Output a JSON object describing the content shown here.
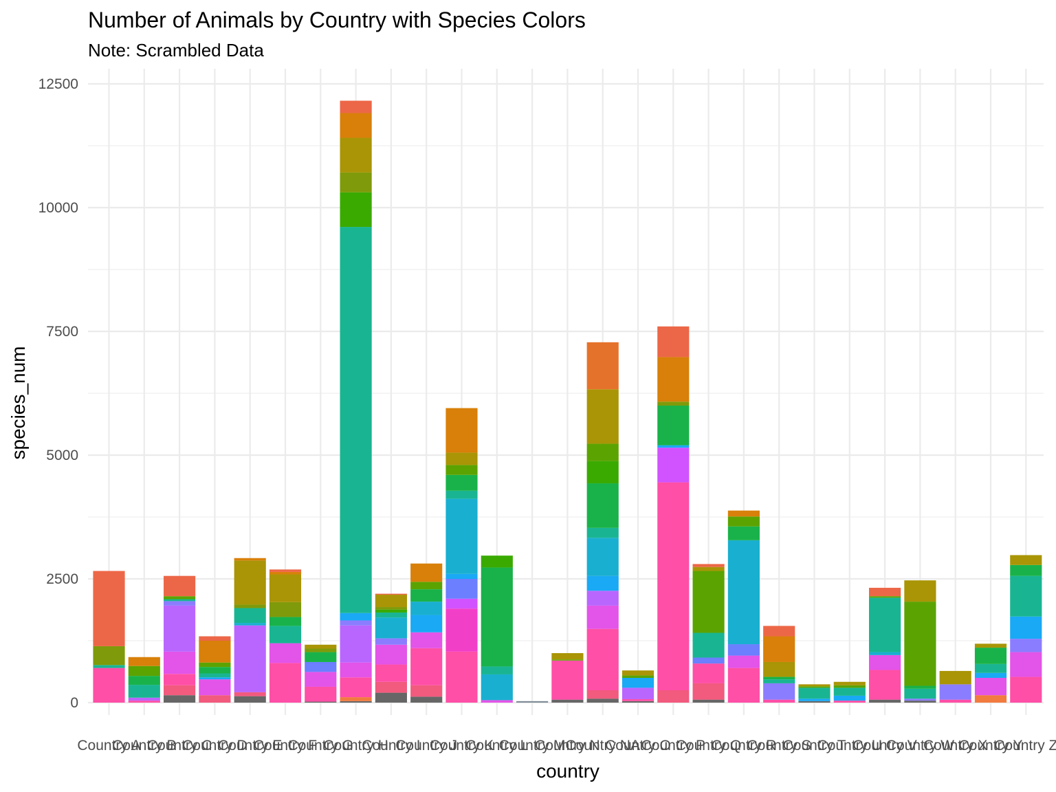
{
  "chart_data": {
    "type": "bar",
    "stacked": true,
    "title": "Number of Animals by Country with Species Colors",
    "subtitle": "Note: Scrambled Data",
    "xlabel": "country",
    "ylabel": "species_num",
    "ylim": [
      0,
      12700
    ],
    "yticks": [
      0,
      2500,
      5000,
      7500,
      10000,
      12500
    ],
    "ytick_labels": [
      "0",
      "2500",
      "5000",
      "7500",
      "10000",
      "12500"
    ],
    "grid": true,
    "legend": "none",
    "categories": [
      "Country A",
      "Country B",
      "Country C",
      "Country D",
      "Country E",
      "Country F",
      "Country G",
      "Country H",
      "Country I",
      "Country J",
      "Country K",
      "Country L",
      "Country M",
      "Country N",
      "Country NA",
      "Country O",
      "Country P",
      "Country Q",
      "Country R",
      "Country S",
      "Country T",
      "Country U",
      "Country V",
      "Country W",
      "Country X",
      "Country Y",
      "Country Z"
    ],
    "stacks": [
      [
        {
          "value": 700,
          "color": "#FF4FA6"
        },
        {
          "value": 60,
          "color": "#19B592"
        },
        {
          "value": 380,
          "color": "#7F9A0A"
        },
        {
          "value": 1520,
          "color": "#EC6747"
        }
      ],
      [
        {
          "value": 40,
          "color": "#FF4FA6"
        },
        {
          "value": 60,
          "color": "#B966FF"
        },
        {
          "value": 260,
          "color": "#19B592"
        },
        {
          "value": 180,
          "color": "#19B24A"
        },
        {
          "value": 200,
          "color": "#5BA300"
        },
        {
          "value": 180,
          "color": "#D8800A"
        }
      ],
      [
        {
          "value": 150,
          "color": "#666666"
        },
        {
          "value": 200,
          "color": "#F25A7E"
        },
        {
          "value": 230,
          "color": "#FF4FA6"
        },
        {
          "value": 450,
          "color": "#E354E8"
        },
        {
          "value": 930,
          "color": "#B966FF"
        },
        {
          "value": 90,
          "color": "#8B7DFF"
        },
        {
          "value": 40,
          "color": "#19B592"
        },
        {
          "value": 60,
          "color": "#5BA300"
        },
        {
          "value": 410,
          "color": "#EC6747"
        }
      ],
      [
        {
          "value": 150,
          "color": "#F25A7E"
        },
        {
          "value": 320,
          "color": "#E354E8"
        },
        {
          "value": 40,
          "color": "#19A9F5"
        },
        {
          "value": 80,
          "color": "#19B592"
        },
        {
          "value": 130,
          "color": "#19B24A"
        },
        {
          "value": 90,
          "color": "#5BA300"
        },
        {
          "value": 440,
          "color": "#D8800A"
        },
        {
          "value": 90,
          "color": "#EC6747"
        }
      ],
      [
        {
          "value": 130,
          "color": "#666666"
        },
        {
          "value": 80,
          "color": "#F25A7E"
        },
        {
          "value": 1350,
          "color": "#B966FF"
        },
        {
          "value": 50,
          "color": "#19AFD0"
        },
        {
          "value": 300,
          "color": "#19B592"
        },
        {
          "value": 70,
          "color": "#7F9A0A"
        },
        {
          "value": 890,
          "color": "#A99506"
        },
        {
          "value": 50,
          "color": "#D8800A"
        }
      ],
      [
        {
          "value": 800,
          "color": "#FF4FA6"
        },
        {
          "value": 400,
          "color": "#E354E8"
        },
        {
          "value": 350,
          "color": "#19B592"
        },
        {
          "value": 180,
          "color": "#19B24A"
        },
        {
          "value": 300,
          "color": "#7F9A0A"
        },
        {
          "value": 560,
          "color": "#A99506"
        },
        {
          "value": 50,
          "color": "#D8800A"
        },
        {
          "value": 50,
          "color": "#EC6747"
        }
      ],
      [
        {
          "value": 20,
          "color": "#666666"
        },
        {
          "value": 300,
          "color": "#FF4FA6"
        },
        {
          "value": 300,
          "color": "#E354E8"
        },
        {
          "value": 200,
          "color": "#6B7FFF"
        },
        {
          "value": 200,
          "color": "#19B24A"
        },
        {
          "value": 70,
          "color": "#7F9A0A"
        },
        {
          "value": 80,
          "color": "#A99506"
        }
      ],
      [
        {
          "value": 30,
          "color": "#666666"
        },
        {
          "value": 80,
          "color": "#F27B3F"
        },
        {
          "value": 400,
          "color": "#FF4FA6"
        },
        {
          "value": 300,
          "color": "#E354E8"
        },
        {
          "value": 750,
          "color": "#B966FF"
        },
        {
          "value": 100,
          "color": "#8B7DFF"
        },
        {
          "value": 150,
          "color": "#19A9F5"
        },
        {
          "value": 7800,
          "color": "#19B592"
        },
        {
          "value": 700,
          "color": "#3AAA00"
        },
        {
          "value": 400,
          "color": "#7F9A0A"
        },
        {
          "value": 700,
          "color": "#A99506"
        },
        {
          "value": 500,
          "color": "#D8800A"
        },
        {
          "value": 250,
          "color": "#EC6747"
        }
      ],
      [
        {
          "value": 200,
          "color": "#666666"
        },
        {
          "value": 220,
          "color": "#F25A7E"
        },
        {
          "value": 350,
          "color": "#FF4FA6"
        },
        {
          "value": 400,
          "color": "#E354E8"
        },
        {
          "value": 130,
          "color": "#8B7DFF"
        },
        {
          "value": 420,
          "color": "#19AFD0"
        },
        {
          "value": 100,
          "color": "#19B592"
        },
        {
          "value": 60,
          "color": "#3AAA00"
        },
        {
          "value": 50,
          "color": "#7F9A0A"
        },
        {
          "value": 250,
          "color": "#A99506"
        },
        {
          "value": 20,
          "color": "#EC6747"
        }
      ],
      [
        {
          "value": 120,
          "color": "#666666"
        },
        {
          "value": 230,
          "color": "#F25A7E"
        },
        {
          "value": 750,
          "color": "#FF4FA6"
        },
        {
          "value": 320,
          "color": "#E354E8"
        },
        {
          "value": 350,
          "color": "#19A9F5"
        },
        {
          "value": 270,
          "color": "#19AFD0"
        },
        {
          "value": 250,
          "color": "#19B24A"
        },
        {
          "value": 150,
          "color": "#5BA300"
        },
        {
          "value": 370,
          "color": "#D8800A"
        }
      ],
      [
        {
          "value": 1030,
          "color": "#FF4FA6"
        },
        {
          "value": 870,
          "color": "#F23FC8"
        },
        {
          "value": 200,
          "color": "#D053FF"
        },
        {
          "value": 400,
          "color": "#6B7FFF"
        },
        {
          "value": 100,
          "color": "#19A9F5"
        },
        {
          "value": 1520,
          "color": "#19AFD0"
        },
        {
          "value": 160,
          "color": "#19B592"
        },
        {
          "value": 320,
          "color": "#19B24A"
        },
        {
          "value": 200,
          "color": "#5BA300"
        },
        {
          "value": 250,
          "color": "#A99506"
        },
        {
          "value": 900,
          "color": "#D8800A"
        }
      ],
      [
        {
          "value": 50,
          "color": "#E354E8"
        },
        {
          "value": 520,
          "color": "#19AFD0"
        },
        {
          "value": 160,
          "color": "#19B592"
        },
        {
          "value": 2000,
          "color": "#19B24A"
        },
        {
          "value": 240,
          "color": "#3AAA00"
        }
      ],
      [
        {
          "value": 30,
          "color": "#7F8C99"
        }
      ],
      [
        {
          "value": 60,
          "color": "#666666"
        },
        {
          "value": 790,
          "color": "#FF4FA6"
        },
        {
          "value": 20,
          "color": "#5BA300"
        },
        {
          "value": 130,
          "color": "#A99506"
        }
      ],
      [
        {
          "value": 80,
          "color": "#666666"
        },
        {
          "value": 170,
          "color": "#F25A7E"
        },
        {
          "value": 1240,
          "color": "#FF4FA6"
        },
        {
          "value": 470,
          "color": "#E354E8"
        },
        {
          "value": 300,
          "color": "#B966FF"
        },
        {
          "value": 300,
          "color": "#19A9F5"
        },
        {
          "value": 770,
          "color": "#19AFD0"
        },
        {
          "value": 200,
          "color": "#19B592"
        },
        {
          "value": 900,
          "color": "#19B24A"
        },
        {
          "value": 450,
          "color": "#3AAA00"
        },
        {
          "value": 350,
          "color": "#5BA300"
        },
        {
          "value": 1100,
          "color": "#A99506"
        },
        {
          "value": 950,
          "color": "#E5722A"
        }
      ],
      [
        {
          "value": 30,
          "color": "#666666"
        },
        {
          "value": 40,
          "color": "#FF4FA6"
        },
        {
          "value": 230,
          "color": "#B966FF"
        },
        {
          "value": 200,
          "color": "#19A9F5"
        },
        {
          "value": 50,
          "color": "#5BA300"
        },
        {
          "value": 100,
          "color": "#A99506"
        }
      ],
      [
        {
          "value": 250,
          "color": "#F25A7E"
        },
        {
          "value": 4200,
          "color": "#FF4FA6"
        },
        {
          "value": 700,
          "color": "#D053FF"
        },
        {
          "value": 50,
          "color": "#19A9F5"
        },
        {
          "value": 800,
          "color": "#19B24A"
        },
        {
          "value": 80,
          "color": "#7F9A0A"
        },
        {
          "value": 900,
          "color": "#D8800A"
        },
        {
          "value": 620,
          "color": "#EC6747"
        }
      ],
      [
        {
          "value": 60,
          "color": "#666666"
        },
        {
          "value": 330,
          "color": "#F25A7E"
        },
        {
          "value": 400,
          "color": "#FF4FA6"
        },
        {
          "value": 120,
          "color": "#6B7FFF"
        },
        {
          "value": 500,
          "color": "#19B592"
        },
        {
          "value": 1250,
          "color": "#5BA300"
        },
        {
          "value": 80,
          "color": "#A99506"
        },
        {
          "value": 60,
          "color": "#EC6747"
        }
      ],
      [
        {
          "value": 700,
          "color": "#FF4FA6"
        },
        {
          "value": 250,
          "color": "#E354E8"
        },
        {
          "value": 230,
          "color": "#6B7FFF"
        },
        {
          "value": 2100,
          "color": "#19AFD0"
        },
        {
          "value": 280,
          "color": "#19B24A"
        },
        {
          "value": 200,
          "color": "#5BA300"
        },
        {
          "value": 120,
          "color": "#D8800A"
        }
      ],
      [
        {
          "value": 60,
          "color": "#FF4FA6"
        },
        {
          "value": 330,
          "color": "#8B7DFF"
        },
        {
          "value": 80,
          "color": "#19B592"
        },
        {
          "value": 50,
          "color": "#19B24A"
        },
        {
          "value": 300,
          "color": "#A99506"
        },
        {
          "value": 520,
          "color": "#D8800A"
        },
        {
          "value": 210,
          "color": "#EC6747"
        }
      ],
      [
        {
          "value": 30,
          "color": "#666666"
        },
        {
          "value": 50,
          "color": "#19A9F5"
        },
        {
          "value": 220,
          "color": "#19B592"
        },
        {
          "value": 30,
          "color": "#5BA300"
        },
        {
          "value": 40,
          "color": "#A99506"
        }
      ],
      [
        {
          "value": 40,
          "color": "#FF4FA6"
        },
        {
          "value": 100,
          "color": "#19A9F5"
        },
        {
          "value": 160,
          "color": "#19B592"
        },
        {
          "value": 50,
          "color": "#5BA300"
        },
        {
          "value": 70,
          "color": "#A99506"
        }
      ],
      [
        {
          "value": 60,
          "color": "#666666"
        },
        {
          "value": 600,
          "color": "#FF4FA6"
        },
        {
          "value": 300,
          "color": "#E354E8"
        },
        {
          "value": 60,
          "color": "#19AFD0"
        },
        {
          "value": 1100,
          "color": "#19B592"
        },
        {
          "value": 30,
          "color": "#5BA300"
        },
        {
          "value": 170,
          "color": "#EC6747"
        }
      ],
      [
        {
          "value": 40,
          "color": "#666666"
        },
        {
          "value": 40,
          "color": "#8B7DFF"
        },
        {
          "value": 200,
          "color": "#19B592"
        },
        {
          "value": 60,
          "color": "#19B24A"
        },
        {
          "value": 1700,
          "color": "#5BA300"
        },
        {
          "value": 430,
          "color": "#A99506"
        }
      ],
      [
        {
          "value": 60,
          "color": "#FF4FA6"
        },
        {
          "value": 310,
          "color": "#8B7DFF"
        },
        {
          "value": 270,
          "color": "#A99506"
        }
      ],
      [
        {
          "value": 150,
          "color": "#F27B3F"
        },
        {
          "value": 350,
          "color": "#E354E8"
        },
        {
          "value": 100,
          "color": "#19A9F5"
        },
        {
          "value": 180,
          "color": "#19B592"
        },
        {
          "value": 330,
          "color": "#19B24A"
        },
        {
          "value": 80,
          "color": "#A99506"
        }
      ],
      [
        {
          "value": 520,
          "color": "#FF4FA6"
        },
        {
          "value": 500,
          "color": "#E354E8"
        },
        {
          "value": 270,
          "color": "#8B7DFF"
        },
        {
          "value": 450,
          "color": "#19A9F5"
        },
        {
          "value": 820,
          "color": "#19B592"
        },
        {
          "value": 220,
          "color": "#19B24A"
        },
        {
          "value": 200,
          "color": "#A99506"
        }
      ]
    ]
  }
}
